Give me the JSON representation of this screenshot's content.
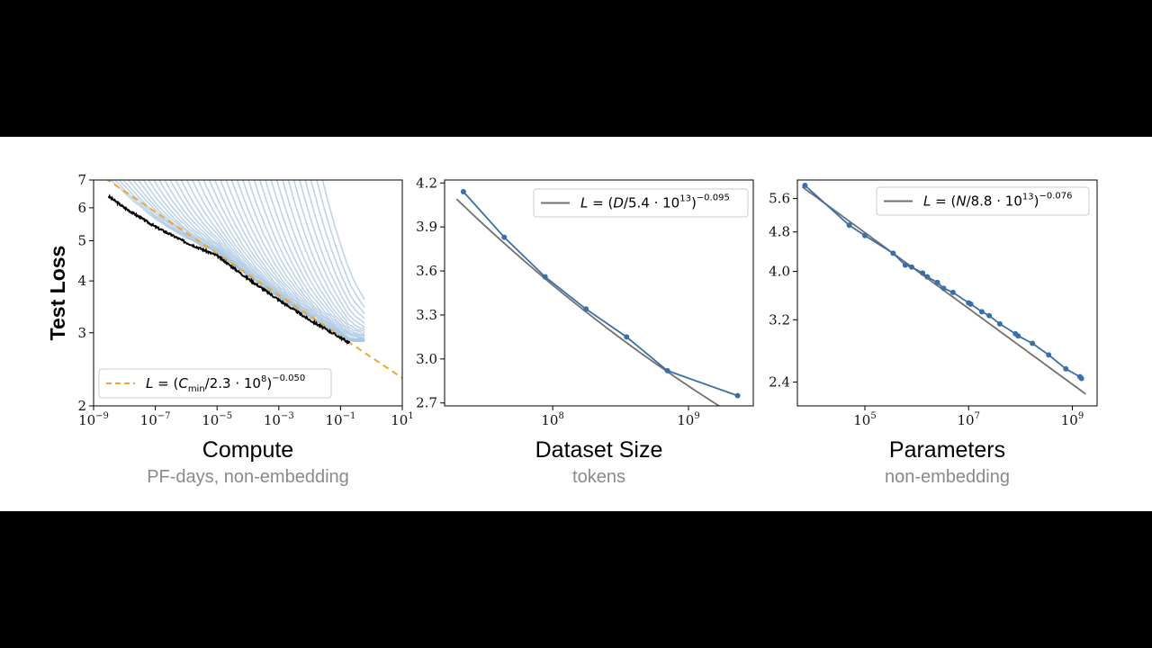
{
  "chart_data": [
    {
      "type": "line",
      "ylabel": "Test Loss",
      "xlabel": "Compute",
      "xsublabel": "PF-days, non-embedding",
      "xscale": "log",
      "yscale": "log",
      "xlim": [
        1e-09,
        10
      ],
      "ylim": [
        2,
        7
      ],
      "xticks": [
        {
          "b": "10",
          "e": "−9"
        },
        {
          "b": "10",
          "e": "−7"
        },
        {
          "b": "10",
          "e": "−5"
        },
        {
          "b": "10",
          "e": "−3"
        },
        {
          "b": "10",
          "e": "−1"
        },
        {
          "b": "10",
          "e": "1"
        }
      ],
      "yticks": [
        "2",
        "3",
        "4",
        "5",
        "6",
        "7"
      ],
      "legend": {
        "placement": "lower-left",
        "prefix": "L = (C",
        "sub": "min",
        "mid": "/2.3 · 10",
        "mid_exp": "8",
        "suffix": ")",
        "exp": "−0.050"
      },
      "colors": {
        "fit": "#f0a830",
        "frontier": "#000000",
        "curves": "#a9c6e2"
      },
      "fit": {
        "scale": 230000000.0,
        "exponent": -0.05
      },
      "frontier": [
        [
          3e-09,
          6.4
        ],
        [
          1e-08,
          6.0
        ],
        [
          1e-07,
          5.4
        ],
        [
          1e-06,
          4.95
        ],
        [
          1e-05,
          4.6
        ],
        [
          0.0001,
          4.05
        ],
        [
          0.001,
          3.6
        ],
        [
          0.01,
          3.22
        ],
        [
          0.1,
          2.92
        ],
        [
          0.2,
          2.83
        ]
      ],
      "curves": {
        "count": 40,
        "start_min": 1e-09,
        "start_max": 0.02,
        "stop_x": 0.6
      }
    },
    {
      "type": "line",
      "xlabel": "Dataset Size",
      "xsublabel": "tokens",
      "xscale": "log",
      "xlim": [
        16000000.0,
        3000000000.0
      ],
      "ylim": [
        2.68,
        4.22
      ],
      "xticks": [
        {
          "b": "10",
          "e": "8",
          "v": 100000000.0
        },
        {
          "b": "10",
          "e": "9",
          "v": 1000000000.0
        }
      ],
      "yticks": [
        "2.7",
        "3.0",
        "3.3",
        "3.6",
        "3.9",
        "4.2"
      ],
      "legend": {
        "placement": "top-right",
        "prefix": "L = (D",
        "sub": "",
        "mid": "/5.4 · 10",
        "mid_exp": "13",
        "suffix": ")",
        "exp": "−0.095"
      },
      "colors": {
        "fit": "#707070",
        "data": "#3a6fa8"
      },
      "fit": {
        "scale": 54000000000000.0,
        "exponent": -0.095
      },
      "points": [
        [
          22000000.0,
          4.14
        ],
        [
          44000000.0,
          3.83
        ],
        [
          88000000.0,
          3.56
        ],
        [
          176000000.0,
          3.34
        ],
        [
          350000000.0,
          3.15
        ],
        [
          700000000.0,
          2.92
        ],
        [
          2300000000.0,
          2.75
        ]
      ]
    },
    {
      "type": "line",
      "xlabel": "Parameters",
      "xsublabel": "non-embedding",
      "xscale": "log",
      "yscale": "log",
      "xlim": [
        5000.0,
        3000000000.0
      ],
      "ylim": [
        2.15,
        6.1
      ],
      "xticks": [
        {
          "b": "10",
          "e": "5",
          "v": 100000.0
        },
        {
          "b": "10",
          "e": "7",
          "v": 10000000.0
        },
        {
          "b": "10",
          "e": "9",
          "v": 1000000000.0
        }
      ],
      "yticks": [
        "2.4",
        "3.2",
        "4.0",
        "4.8",
        "5.6"
      ],
      "legend": {
        "placement": "top-right",
        "prefix": "L = (N",
        "sub": "",
        "mid": "/8.8 · 10",
        "mid_exp": "13",
        "suffix": ")",
        "exp": "−0.076"
      },
      "colors": {
        "fit": "#707070",
        "data": "#3a6fa8"
      },
      "fit": {
        "scale": 88000000000000.0,
        "exponent": -0.076
      },
      "points": [
        [
          7000.0,
          5.95
        ],
        [
          50000.0,
          4.95
        ],
        [
          100000.0,
          4.72
        ],
        [
          350000.0,
          4.35
        ],
        [
          600000.0,
          4.12
        ],
        [
          800000.0,
          4.08
        ],
        [
          1300000.0,
          3.97
        ],
        [
          1600000.0,
          3.9
        ],
        [
          2500000.0,
          3.8
        ],
        [
          3300000.0,
          3.7
        ],
        [
          5000000.0,
          3.63
        ],
        [
          10000000.0,
          3.46
        ],
        [
          11000000.0,
          3.44
        ],
        [
          18000000.0,
          3.32
        ],
        [
          25000000.0,
          3.26
        ],
        [
          40000000.0,
          3.14
        ],
        [
          80000000.0,
          3.0
        ],
        [
          90000000.0,
          2.97
        ],
        [
          170000000.0,
          2.87
        ],
        [
          350000000.0,
          2.72
        ],
        [
          750000000.0,
          2.55
        ],
        [
          1400000000.0,
          2.46
        ],
        [
          1500000000.0,
          2.44
        ]
      ]
    }
  ]
}
